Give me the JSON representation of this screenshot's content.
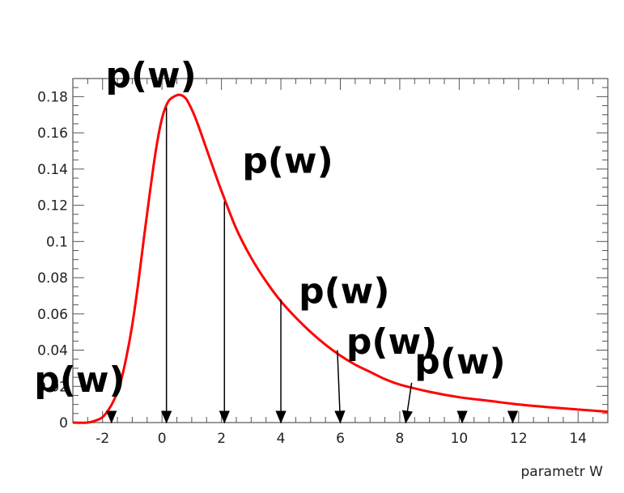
{
  "chart_data": {
    "type": "line",
    "title": "",
    "xlabel": "parametr W",
    "ylabel": "",
    "xlim": [
      -3,
      15
    ],
    "ylim": [
      0,
      0.19
    ],
    "grid": false,
    "x_ticks": [
      -2,
      0,
      2,
      4,
      6,
      8,
      10,
      12,
      14
    ],
    "y_ticks": [
      0,
      0.02,
      0.04,
      0.06,
      0.08,
      0.1,
      0.12,
      0.14,
      0.16,
      0.18
    ],
    "y_tick_labels": [
      "0",
      "0.02",
      "0.04",
      "0.06",
      "0.08",
      "0.1",
      "0.12",
      "0.14",
      "0.16",
      "0.18"
    ],
    "series": [
      {
        "color": "#ff0000",
        "x": [
          -3,
          -2.5,
          -2.2,
          -2,
          -1.8,
          -1.6,
          -1.4,
          -1.2,
          -1,
          -0.8,
          -0.6,
          -0.4,
          -0.2,
          0,
          0.2,
          0.4,
          0.6,
          0.8,
          1,
          1.2,
          1.5,
          1.8,
          2,
          2.5,
          3,
          3.5,
          4,
          4.5,
          5,
          5.5,
          6,
          6.5,
          7,
          7.5,
          8,
          9,
          10,
          11,
          12,
          13,
          14,
          15
        ],
        "y": [
          0,
          0,
          0.0013,
          0.003,
          0.007,
          0.013,
          0.022,
          0.036,
          0.054,
          0.077,
          0.103,
          0.128,
          0.151,
          0.168,
          0.177,
          0.18,
          0.181,
          0.179,
          0.173,
          0.165,
          0.151,
          0.137,
          0.128,
          0.107,
          0.091,
          0.078,
          0.067,
          0.058,
          0.05,
          0.043,
          0.037,
          0.032,
          0.028,
          0.024,
          0.021,
          0.017,
          0.014,
          0.012,
          0.01,
          0.0085,
          0.0072,
          0.006
        ]
      }
    ],
    "arrows": [
      {
        "x1": 0.15,
        "y1": 0.174,
        "x2": 0.15,
        "y2": 0
      },
      {
        "x1": 2.1,
        "y1": 0.122,
        "x2": 2.1,
        "y2": 0
      },
      {
        "x1": 4.0,
        "y1": 0.068,
        "x2": 4.0,
        "y2": 0
      },
      {
        "x1": 5.9,
        "y1": 0.04,
        "x2": 6.0,
        "y2": 0
      },
      {
        "x1": 8.4,
        "y1": 0.022,
        "x2": 8.2,
        "y2": 0
      },
      {
        "x1": 10.1,
        "y1": 0.003,
        "x2": 10.1,
        "y2": 0
      },
      {
        "x1": 11.8,
        "y1": 0.003,
        "x2": 11.8,
        "y2": 0
      },
      {
        "x1": -1.7,
        "y1": 0.004,
        "x2": -1.7,
        "y2": 0
      }
    ],
    "annotations": [
      {
        "text": "p(w)",
        "x": -1.9,
        "y": 0.185
      },
      {
        "text": "p(w)",
        "x": 2.7,
        "y": 0.138
      },
      {
        "text": "p(w)",
        "x": 4.6,
        "y": 0.066
      },
      {
        "text": "p(w)",
        "x": 6.2,
        "y": 0.038
      },
      {
        "text": "p(w)",
        "x": 8.5,
        "y": 0.027
      },
      {
        "text": "p(w)",
        "x": -4.3,
        "y": 0.017
      }
    ]
  }
}
